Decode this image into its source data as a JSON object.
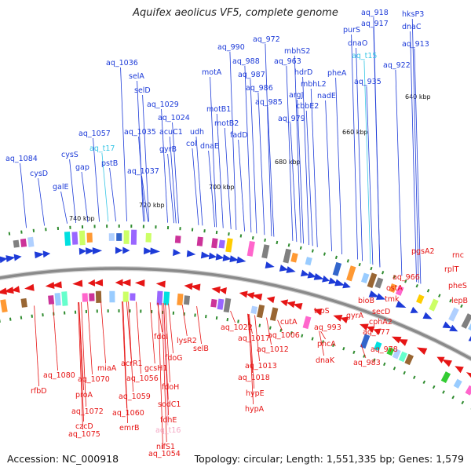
{
  "title": "Aquifex aeolicus VF5, complete genome",
  "footer": {
    "accession": "Accession: NC_000918",
    "summary": "Topology: circular; Length: 1,551,335 bp; Genes: 1,579"
  },
  "colors": {
    "forward": "#1d3bd8",
    "reverse": "#e61515",
    "trna": "#36c6e6",
    "trna_reverse": "#f4a8c4",
    "backbone": "#8a8a8a",
    "tick": "#2e8b2e"
  },
  "scale_labels": [
    "640 kbp",
    "660 kbp",
    "680 kbp",
    "700 kbp",
    "720 kbp",
    "740 kbp"
  ],
  "top_labels": [
    "aq_918",
    "hksP3",
    "aq_917",
    "dnaC",
    "purS",
    "dnaO",
    "aq_913",
    "aq_t15",
    "aq_922",
    "aq_935",
    "aq_972",
    "mbhS2",
    "aq_990",
    "aq_963",
    "aq_988",
    "hdrD",
    "pheA",
    "aq_987",
    "mbhL2",
    "aq_986",
    "argJ",
    "nadE",
    "cbbE2",
    "aq_985",
    "aq_979",
    "aq_1036",
    "selA",
    "selD",
    "aq_1029",
    "aq_1024",
    "motA",
    "motB1",
    "motB2",
    "fadD",
    "acuC1",
    "udh",
    "col",
    "dnaE",
    "aq_1035",
    "gyrB",
    "aq_1057",
    "aq_t17",
    "cysS",
    "pstB",
    "gap",
    "aq_1037",
    "aq_1084",
    "cysD",
    "galE"
  ],
  "bottom_labels": [
    "rnc",
    "pgsA2",
    "rplT",
    "pheS",
    "lepB",
    "aq_966",
    "ostA",
    "tmk",
    "bioB",
    "secD",
    "cphA2",
    "gyrA",
    "aq_977",
    "aq_978",
    "aq_983",
    "trpS",
    "aq_993",
    "pncA",
    "dnaK",
    "cutA",
    "aq_1006",
    "aq_1012",
    "aq_1013",
    "aq_1017",
    "aq_1022",
    "aq_1018",
    "hypE",
    "hypA",
    "selB",
    "lysR2",
    "fdoI",
    "fdoG",
    "fdoH",
    "gcsH1",
    "acrR1",
    "miaA",
    "aq_1056",
    "sodC1",
    "fdhE",
    "aq_t16",
    "aq_1059",
    "nifS1",
    "aq_1054",
    "aq_1060",
    "emrB",
    "aq_1080",
    "aq_1070",
    "rfbD",
    "proA",
    "aq_1072",
    "czcD",
    "aq_1075"
  ]
}
